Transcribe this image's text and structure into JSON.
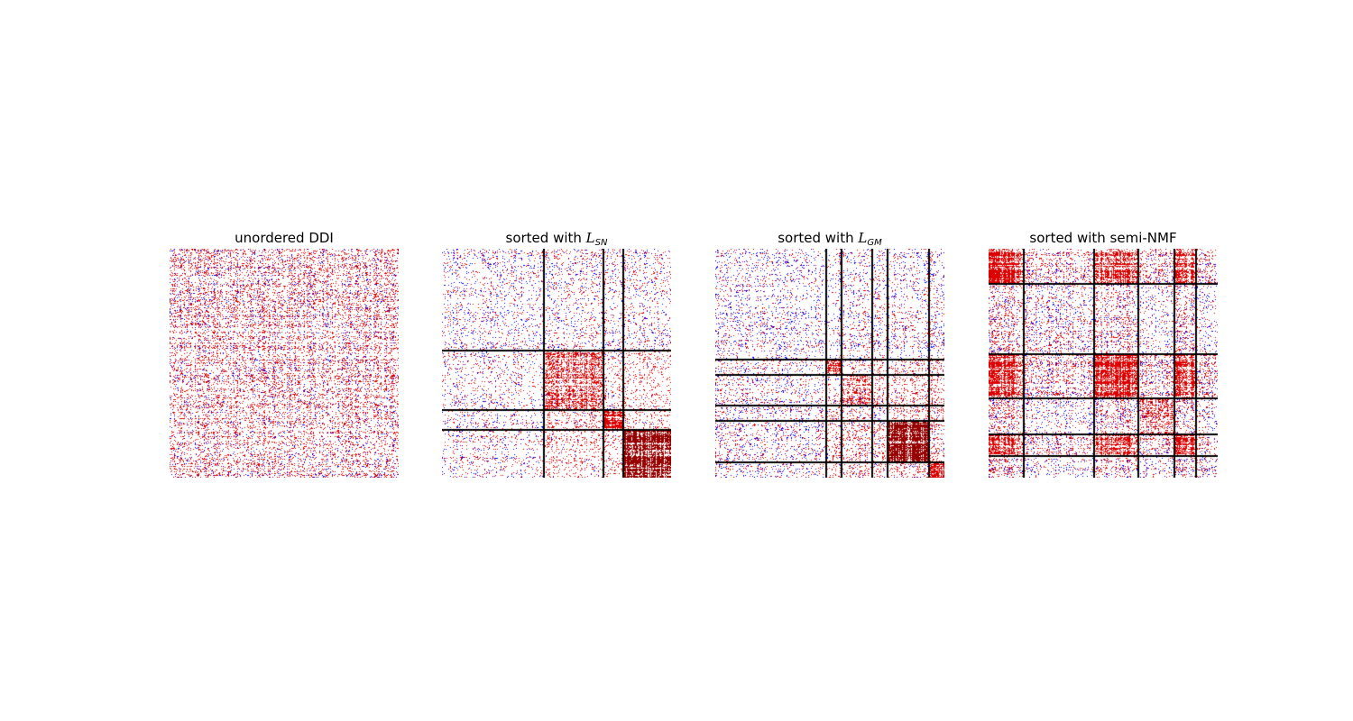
{
  "chart_data": [
    {
      "type": "heatmap",
      "title": "unordered DDI",
      "colors": {
        "positive": "#dd0000",
        "negative": "#0000ff",
        "background": "#ffffff",
        "separator": "#000000"
      },
      "blocks": [],
      "grid": false
    },
    {
      "type": "heatmap",
      "title": "sorted with L_SN",
      "title_main": "sorted with ",
      "title_sym": "L",
      "title_sub": "SN",
      "colors": {
        "positive": "#dd0000",
        "negative": "#0000ff",
        "background": "#ffffff",
        "separator": "#000000"
      },
      "block_boundaries": [
        0.445,
        0.705,
        0.79
      ],
      "grid": false
    },
    {
      "type": "heatmap",
      "title": "sorted with L_GM",
      "title_main": "sorted with ",
      "title_sym": "L",
      "title_sub": "GM",
      "colors": {
        "positive": "#dd0000",
        "negative": "#0000ff",
        "background": "#ffffff",
        "separator": "#000000"
      },
      "block_boundaries": [
        0.485,
        0.55,
        0.685,
        0.75,
        0.935
      ],
      "grid": false
    },
    {
      "type": "heatmap",
      "title": "sorted with semi-NMF",
      "colors": {
        "positive": "#dd0000",
        "negative": "#0000ff",
        "background": "#ffffff",
        "separator": "#000000"
      },
      "block_boundaries": [
        0.155,
        0.46,
        0.655,
        0.81,
        0.905
      ],
      "grid": false
    }
  ]
}
